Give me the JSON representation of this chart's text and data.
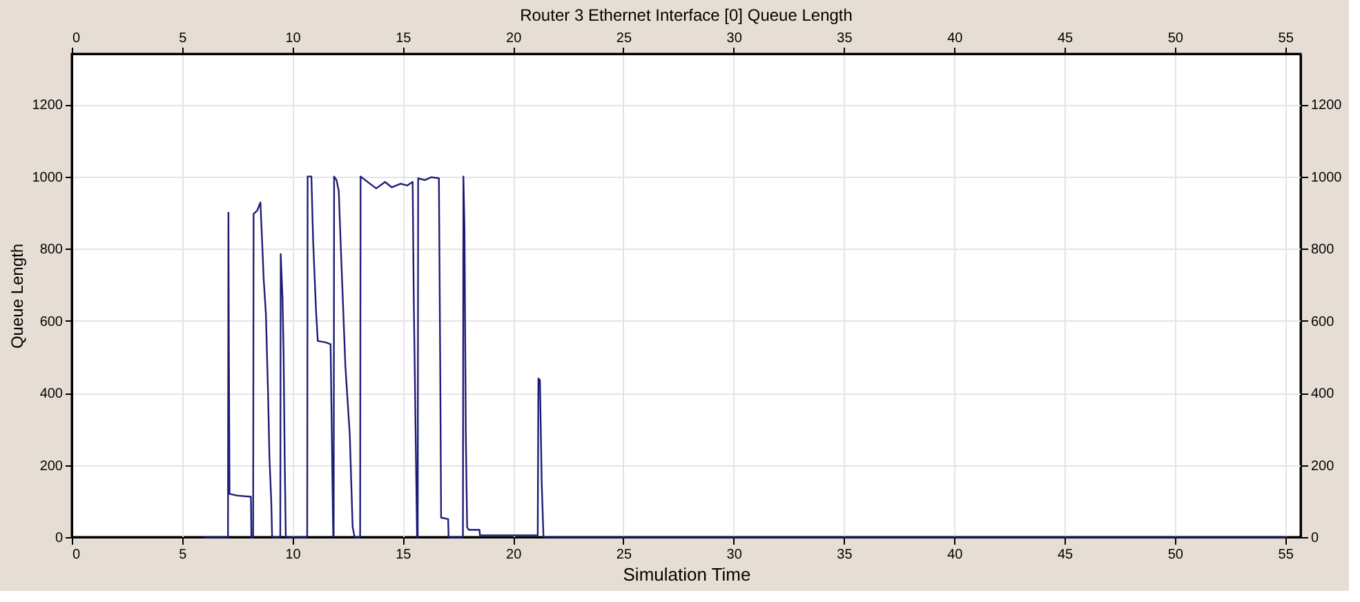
{
  "chart_data": {
    "type": "line",
    "title": "Router 3 Ethernet Interface [0] Queue Length",
    "xlabel": "Simulation Time",
    "ylabel": "Queue Length",
    "x": [
      6.0,
      7.08,
      7.1,
      7.12,
      7.15,
      7.5,
      8.12,
      8.14,
      8.22,
      8.24,
      8.4,
      8.55,
      8.6,
      8.7,
      8.8,
      8.9,
      8.96,
      9.04,
      9.08,
      9.45,
      9.47,
      9.55,
      9.6,
      9.65,
      9.7,
      10.67,
      10.69,
      10.86,
      10.94,
      11.07,
      11.15,
      11.5,
      11.73,
      11.85,
      11.87,
      11.89,
      12.0,
      12.1,
      12.2,
      12.4,
      12.6,
      12.73,
      12.82,
      13.07,
      13.09,
      13.3,
      13.8,
      14.2,
      14.5,
      14.9,
      15.2,
      15.45,
      15.5,
      15.65,
      15.68,
      15.7,
      16.0,
      16.3,
      16.64,
      16.7,
      16.74,
      17.06,
      17.08,
      17.73,
      17.75,
      17.8,
      17.86,
      17.92,
      18.0,
      18.48,
      18.5,
      21.12,
      21.15,
      21.22,
      21.3,
      21.38,
      55.1
    ],
    "series": [
      {
        "color": "#1c1c78",
        "values": [
          0,
          0,
          900,
          530,
          120,
          115,
          112,
          0,
          0,
          896,
          905,
          928,
          858,
          713,
          617,
          387,
          218,
          103,
          0,
          0,
          785,
          666,
          513,
          218,
          0,
          0,
          1000,
          1000,
          820,
          628,
          544,
          540,
          535,
          0,
          0,
          1000,
          990,
          960,
          794,
          475,
          284,
          28,
          0,
          0,
          1000,
          990,
          967,
          985,
          970,
          980,
          975,
          985,
          666,
          0,
          0,
          995,
          990,
          998,
          995,
          475,
          54,
          50,
          0,
          0,
          1000,
          858,
          284,
          27,
          20,
          20,
          5,
          5,
          440,
          435,
          150,
          0,
          0
        ]
      }
    ],
    "xlim": [
      0,
      55.7
    ],
    "xticks": [
      0,
      5,
      10,
      15,
      20,
      25,
      30,
      35,
      40,
      45,
      50,
      55
    ],
    "ylim": [
      0,
      1340
    ],
    "yticks": [
      0,
      200,
      400,
      600,
      800,
      1000,
      1200
    ],
    "x2lim": [
      0,
      55.7
    ],
    "x2ticks": [
      0,
      5,
      10,
      15,
      20,
      25,
      30,
      35,
      40,
      45,
      50,
      55
    ],
    "y2lim": [
      0,
      1340
    ],
    "y2ticks": [
      0,
      200,
      400,
      600,
      800,
      1000,
      1200
    ],
    "grid": true,
    "marker": "none",
    "line_style": "solid"
  }
}
